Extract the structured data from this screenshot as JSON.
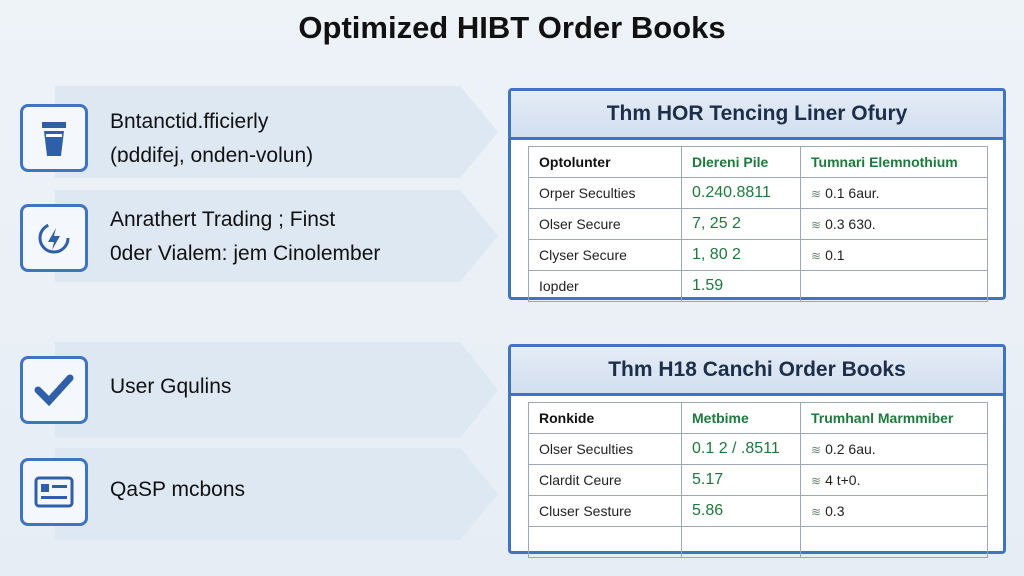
{
  "title": "Optimized HIBT Order Books",
  "features": [
    [
      "Bntanctid.fficierly",
      "(ɒddifej, onden-volun)"
    ],
    [
      "Anrathert Trading ; Finst",
      "0der Vialem: jem Cinolember"
    ],
    [
      "User Gqulins"
    ],
    [
      "QaSP mcbons"
    ]
  ],
  "tables": [
    {
      "title": "Thm HOR Tencing Liner Ofury",
      "headers": [
        "Optolunter",
        "Dlereni Pile",
        "Tumnari Elemnothium"
      ],
      "rows": [
        [
          "Orper Seculties",
          "0.240.8811",
          "0.1 6aur."
        ],
        [
          "Olser Secure",
          "7, 25 2",
          "0.3 630."
        ],
        [
          "Clyser Secure",
          "1, 80 2",
          "0.1"
        ],
        [
          "Iopder",
          "1.59"
        ]
      ]
    },
    {
      "title": "Thm H18 Canchi Order Books",
      "headers": [
        "Ronkide",
        "Metbime",
        "Trumhanl Marmmiber"
      ],
      "rows": [
        [
          "Olser Seculties",
          "0.1 2 / .8511",
          "0.2 6au."
        ],
        [
          "Clardit Ceure",
          "5.17",
          "4 t+0."
        ],
        [
          "Cluser Sesture",
          "5.86",
          "0.3"
        ]
      ]
    }
  ]
}
